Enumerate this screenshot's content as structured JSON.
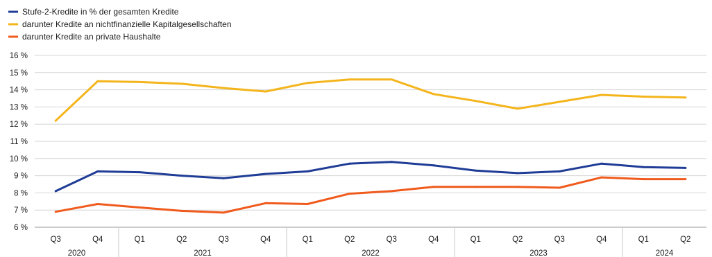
{
  "chart_data": {
    "type": "line",
    "title": "",
    "xlabel": "",
    "ylabel": "",
    "ylim": [
      6,
      16
    ],
    "y_ticks": [
      6,
      7,
      8,
      9,
      10,
      11,
      12,
      13,
      14,
      15,
      16
    ],
    "y_tick_labels": [
      "6 %",
      "7 %",
      "8 %",
      "9 %",
      "10 %",
      "11 %",
      "12 %",
      "13 %",
      "14 %",
      "15 %",
      "16 %"
    ],
    "grid": "horizontal",
    "legend_position": "top-left",
    "categories": [
      "Q3",
      "Q4",
      "Q1",
      "Q2",
      "Q3",
      "Q4",
      "Q1",
      "Q2",
      "Q3",
      "Q4",
      "Q1",
      "Q2",
      "Q3",
      "Q4",
      "Q1",
      "Q2"
    ],
    "years": [
      {
        "label": "2020",
        "start": 0,
        "end": 1
      },
      {
        "label": "2021",
        "start": 2,
        "end": 5
      },
      {
        "label": "2022",
        "start": 6,
        "end": 9
      },
      {
        "label": "2023",
        "start": 10,
        "end": 13
      },
      {
        "label": "2024",
        "start": 14,
        "end": 15
      }
    ],
    "series": [
      {
        "name": "Stufe-2-Kredite in % der gesamten Kredite",
        "color": "#1f3c96",
        "values": [
          8.1,
          9.25,
          9.2,
          9.0,
          8.85,
          9.1,
          9.25,
          9.7,
          9.8,
          9.6,
          9.3,
          9.15,
          9.25,
          9.7,
          9.5,
          9.45
        ]
      },
      {
        "name": "darunter Kredite an nichtfinanzielle Kapitalgesellschaften",
        "color": "#f4b51c",
        "values": [
          12.2,
          14.5,
          14.45,
          14.35,
          14.1,
          13.9,
          14.4,
          14.6,
          14.6,
          13.75,
          13.35,
          12.9,
          13.3,
          13.7,
          13.6,
          13.55
        ]
      },
      {
        "name": "darunter Kredite an private Haushalte",
        "color": "#f05a1c",
        "values": [
          6.9,
          7.35,
          7.15,
          6.95,
          6.85,
          7.4,
          7.35,
          7.95,
          8.1,
          8.35,
          8.35,
          8.35,
          8.3,
          8.9,
          8.8,
          8.8
        ]
      }
    ]
  }
}
